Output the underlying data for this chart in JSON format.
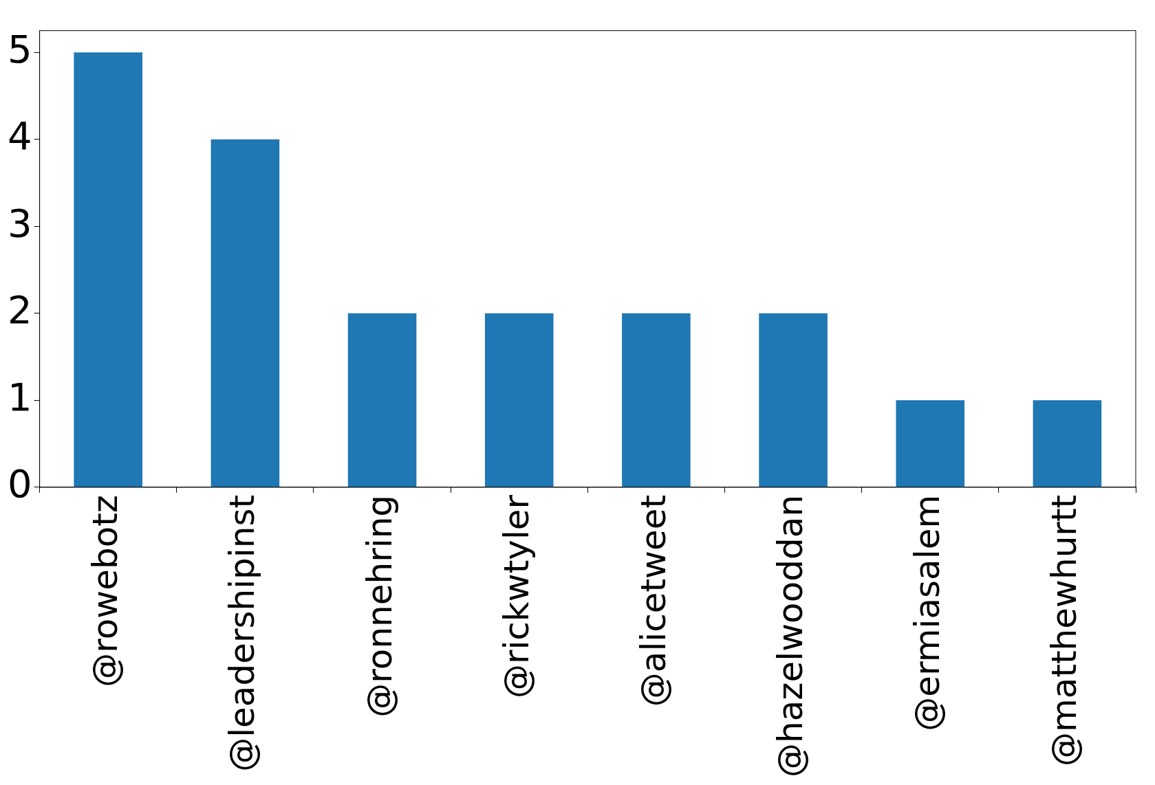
{
  "chart_data": {
    "type": "bar",
    "categories": [
      "@rowebotz",
      "@leadershipinst",
      "@ronnehring",
      "@rickwtyler",
      "@alicetweet",
      "@hazelwooddan",
      "@ermiasalem",
      "@matthewhurtt"
    ],
    "values": [
      5,
      4,
      2,
      2,
      2,
      2,
      1,
      1
    ],
    "color": "#1f77b4",
    "ylim": [
      0,
      5.25
    ],
    "yticks": [
      0,
      1,
      2,
      3,
      4,
      5
    ],
    "grid": false,
    "legend": false
  }
}
